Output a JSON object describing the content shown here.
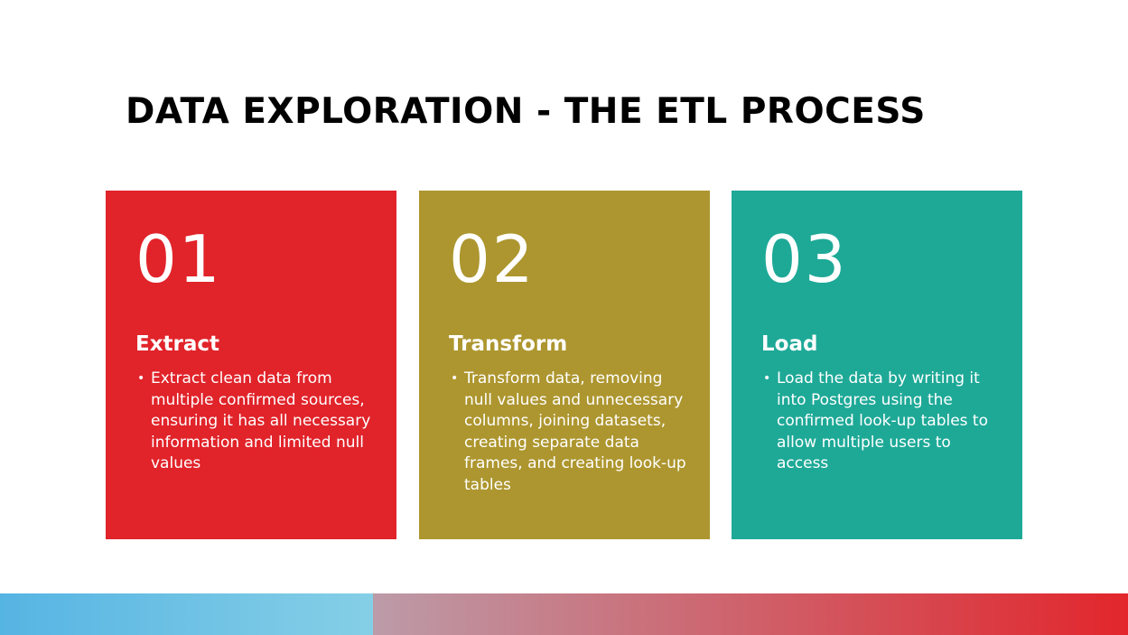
{
  "slide": {
    "title": "DATA EXPLORATION - THE ETL PROCESS"
  },
  "cards": [
    {
      "number": "01",
      "heading": "Extract",
      "bullet": "Extract clean data from multiple confirmed sources, ensuring it has all necessary information and limited null values",
      "color": "#e1232a"
    },
    {
      "number": "02",
      "heading": "Transform",
      "bullet": "Transform data, removing null values and unnecessary columns, joining datasets, creating separate data frames, and creating look-up tables",
      "color": "#ad962f"
    },
    {
      "number": "03",
      "heading": "Load",
      "bullet": "Load the data by writing it into Postgres using the confirmed look-up tables to allow multiple users to access",
      "color": "#1ea997"
    }
  ],
  "bullet_glyph": "•",
  "colors": {
    "band_left_start": "#56b4e3",
    "band_left_end": "#85cfe6",
    "band_right_start": "#bc9ba8",
    "band_right_end": "#e2262c"
  }
}
